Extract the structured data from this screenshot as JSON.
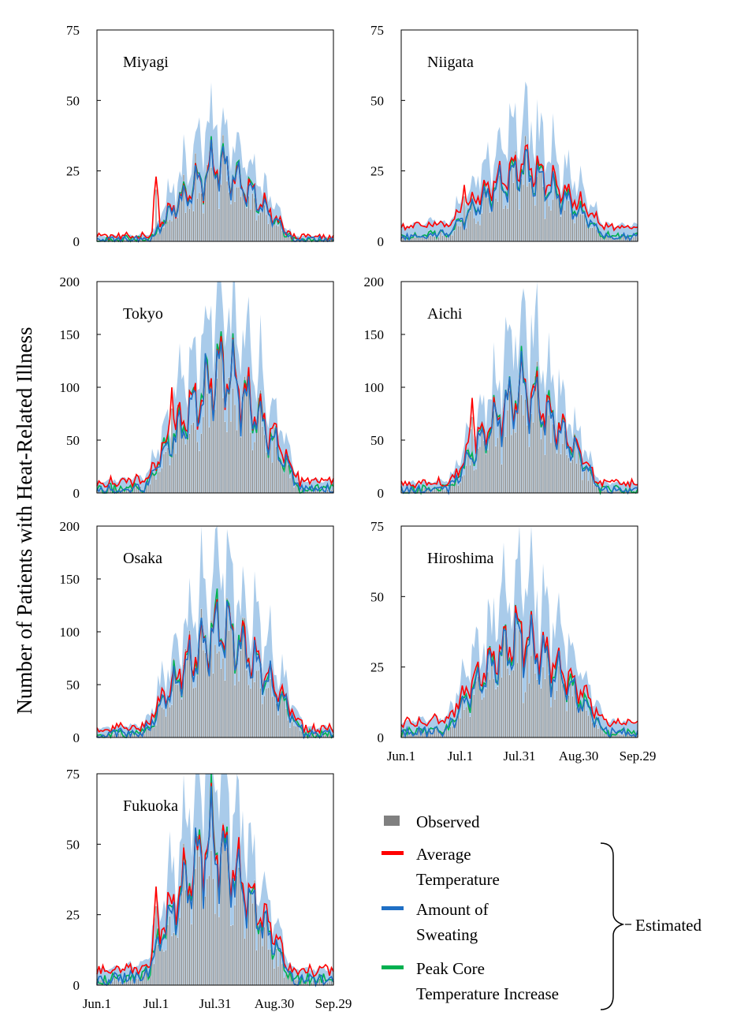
{
  "figure": {
    "ylabel": "Number of Patients with Heat-Related Illness",
    "estimated_label": "Estimated"
  },
  "chart_data": {
    "type": "line",
    "x_ticks": [
      "Jun.1",
      "Jul.1",
      "Jul.31",
      "Aug.30",
      "Sep.29"
    ],
    "x_range_days": [
      0,
      120
    ],
    "legend": [
      {
        "name": "Observed",
        "color": "#808080"
      },
      {
        "name": "Average Temperature",
        "lines": [
          "Average",
          "Temperature"
        ],
        "color": "#ff0000"
      },
      {
        "name": "Amount of Sweating",
        "lines": [
          "Amount of",
          "Sweating"
        ],
        "color": "#1f6fc5"
      },
      {
        "name": "Peak Core Temperature Increase",
        "lines": [
          "Peak Core",
          "Temperature Increase"
        ],
        "color": "#00b050"
      }
    ],
    "band_color": "#a9cbea",
    "panels": [
      {
        "name": "Miyagi",
        "ylim": [
          0,
          75
        ],
        "yticks": [
          0,
          25,
          50,
          75
        ],
        "show_xticks": false,
        "peak": 28,
        "peak_day": 61,
        "start_day": 28,
        "end_day": 98,
        "base": 1,
        "spike_day": 30,
        "spike_val": 23
      },
      {
        "name": "Niigata",
        "ylim": [
          0,
          75
        ],
        "yticks": [
          0,
          25,
          50,
          75
        ],
        "show_xticks": false,
        "peak": 26,
        "peak_day": 62,
        "start_day": 22,
        "end_day": 104,
        "base": 3,
        "spike_day": 32,
        "spike_val": 20
      },
      {
        "name": "Tokyo",
        "ylim": [
          0,
          200
        ],
        "yticks": [
          0,
          50,
          100,
          150,
          200
        ],
        "show_xticks": false,
        "peak": 120,
        "peak_day": 64,
        "start_day": 25,
        "end_day": 102,
        "base": 6,
        "spike_day": 38,
        "spike_val": 100
      },
      {
        "name": "Aichi",
        "ylim": [
          0,
          200
        ],
        "yticks": [
          0,
          50,
          100,
          150,
          200
        ],
        "show_xticks": false,
        "peak": 100,
        "peak_day": 62,
        "start_day": 25,
        "end_day": 100,
        "base": 5,
        "spike_day": 36,
        "spike_val": 90
      },
      {
        "name": "Osaka",
        "ylim": [
          0,
          200
        ],
        "yticks": [
          0,
          50,
          100,
          150,
          200
        ],
        "show_xticks": false,
        "peak": 108,
        "peak_day": 63,
        "start_day": 25,
        "end_day": 104,
        "base": 5,
        "spike_day": 42,
        "spike_val": 65
      },
      {
        "name": "Hiroshima",
        "ylim": [
          0,
          75
        ],
        "yticks": [
          0,
          25,
          50,
          75
        ],
        "show_xticks": true,
        "peak": 36,
        "peak_day": 60,
        "start_day": 22,
        "end_day": 104,
        "base": 3,
        "spike_day": 38,
        "spike_val": 25
      },
      {
        "name": "Fukuoka",
        "ylim": [
          0,
          75
        ],
        "yticks": [
          0,
          25,
          50,
          75
        ],
        "show_xticks": true,
        "peak": 52,
        "peak_day": 58,
        "start_day": 24,
        "end_day": 98,
        "base": 3,
        "spike_day": 30,
        "spike_val": 35
      }
    ]
  }
}
